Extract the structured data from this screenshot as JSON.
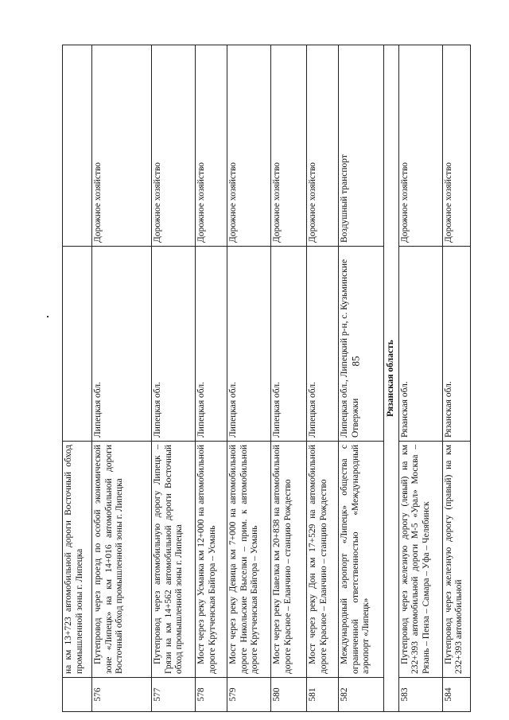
{
  "page_number": "85",
  "rows": [
    {
      "num": "",
      "name": "на км 13+723 автомобильной дороги Восточный обход промышленной зоны г. Липецка",
      "region": "",
      "type": ""
    },
    {
      "num": "576",
      "name": "Путепровод через проезд по особой экономической зоне «Липецк» на км 14+016 автомобильной дороги Восточный обход промышленной зоны г. Липецка",
      "region": "Липецкая обл.",
      "type": "Дорожное хозяйство"
    },
    {
      "num": "577",
      "name": "Путепровод через автомобильную дорогу Липецк – Грязи на км 14+562 автомобильной дороги Восточный обход промышленной зоны г. Липецка",
      "region": "Липецкая обл.",
      "type": "Дорожное хозяйство"
    },
    {
      "num": "578",
      "name": "Мост через реку Усманка км 12+000 на автомобильной дороге Крутченская Байгора – Усмань",
      "region": "Липецкая обл.",
      "type": "Дорожное хозяйство"
    },
    {
      "num": "579",
      "name": "Мост через реку Девица км 7+000 на автомобильной дороге Никольские Выселки – прим. к автомобильной дороге Крутченская Байгора – Усмань",
      "region": "Липецкая обл.",
      "type": "Дорожное хозяйство"
    },
    {
      "num": "580",
      "name": "Мост через реку Павелка км 20+838 на автомобильной дороге Красное – Еланчино – станцию Рождество",
      "region": "Липецкая обл.",
      "type": "Дорожное хозяйство"
    },
    {
      "num": "581",
      "name": "Мост через реку Дон км 17+529 на автомобильной дороге Красное – Еланчино – станцию Рождество",
      "region": "Липецкая обл.",
      "type": "Дорожное хозяйство"
    },
    {
      "num": "582",
      "name": "Международный аэропорт «Липецк» общества с ограниченной ответственностью «Международный аэропорт «Липецк»",
      "region": "Липецкая обл., Липецкий р-н, с. Кузьминские Отвержки",
      "type": "Воздушный транспорт"
    }
  ],
  "section": "Рязанская область",
  "rows2": [
    {
      "num": "583",
      "name": "Путепровод через железную дорогу (левый) на км 232+393 автомобильной дороги М-5 «Урал» Москва – Рязань – Пенза – Самара – Уфа – Челябинск",
      "region": "Рязанская обл.",
      "type": "Дорожное хозяйство"
    },
    {
      "num": "584",
      "name": "Путепровод через железную дорогу (правый) на км 232+393 автомобильной",
      "region": "Рязанская обл.",
      "type": "Дорожное хозяйство"
    }
  ]
}
